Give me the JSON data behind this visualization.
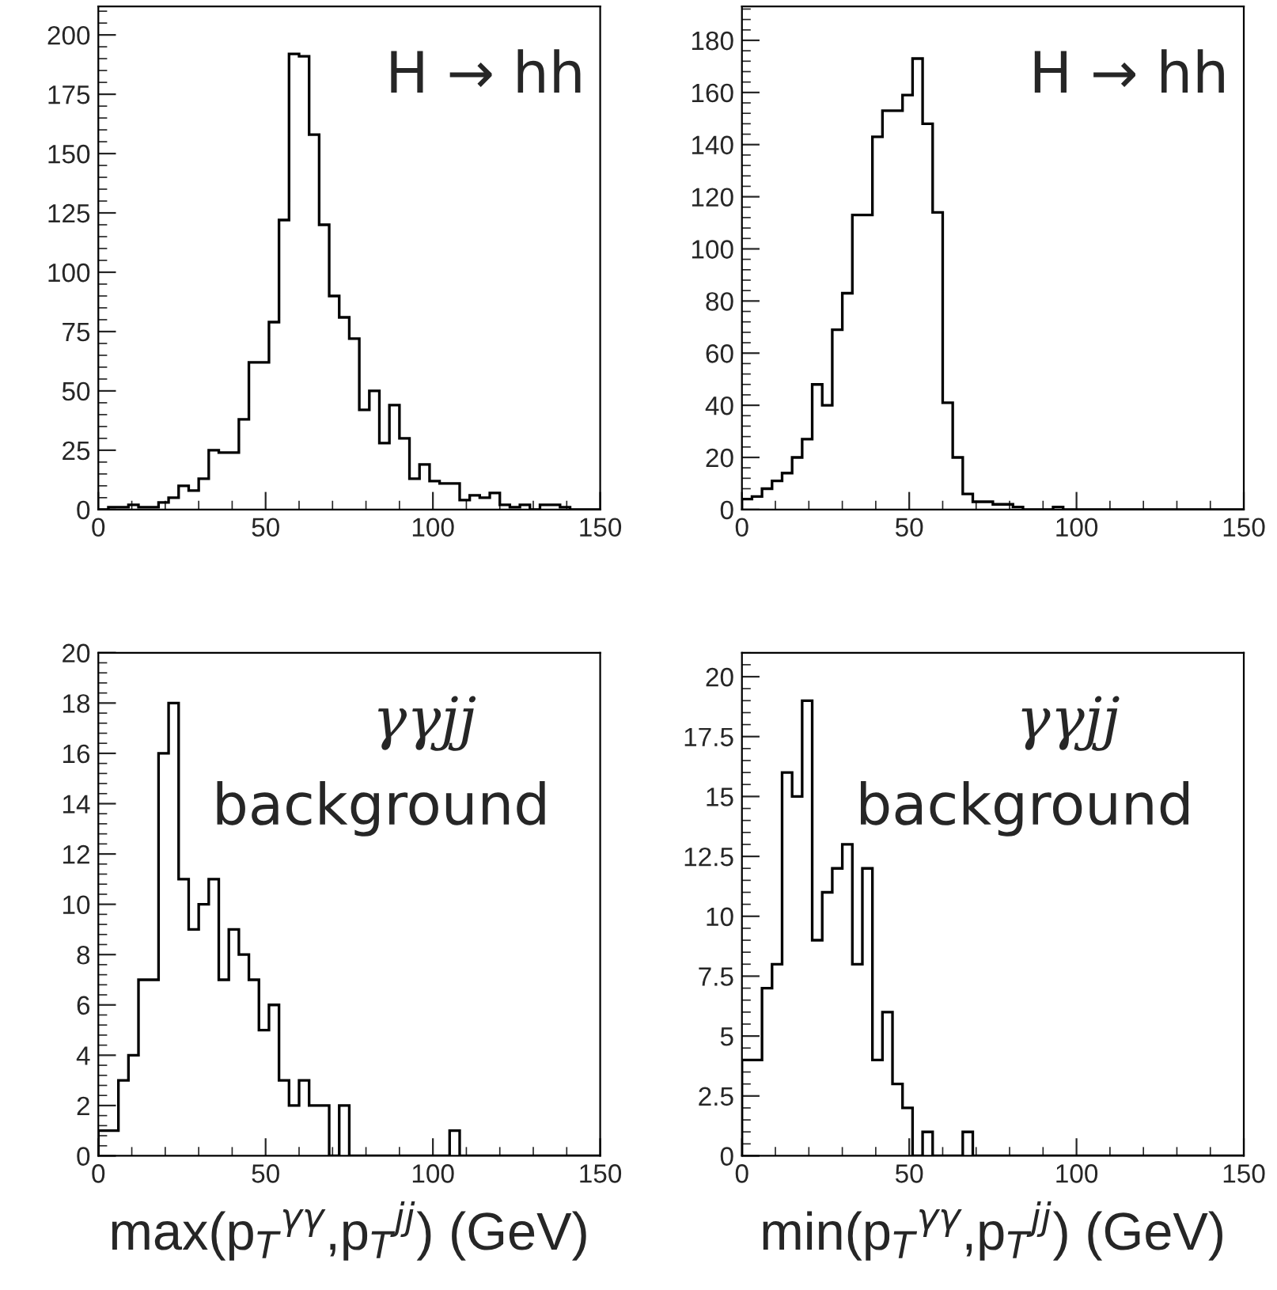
{
  "chart_data": [
    {
      "type": "histogram",
      "bins": [
        0,
        3,
        6,
        9,
        12,
        15,
        18,
        21,
        24,
        27,
        30,
        33,
        36,
        39,
        42,
        45,
        48,
        51,
        54,
        57,
        60,
        63,
        66,
        69,
        72,
        75,
        78,
        81,
        84,
        87,
        90,
        93,
        96,
        99,
        102,
        105,
        108,
        111,
        114,
        117,
        120,
        123,
        126,
        129,
        132,
        135,
        138,
        141,
        144,
        147,
        150
      ],
      "values": [
        0,
        1,
        1,
        2,
        1,
        1,
        3,
        5,
        10,
        8,
        13,
        25,
        24,
        24,
        38,
        62,
        62,
        79,
        122,
        192,
        191,
        158,
        120,
        90,
        81,
        72,
        42,
        50,
        28,
        44,
        30,
        13,
        19,
        12,
        11,
        11,
        4,
        6,
        5,
        7,
        2,
        1,
        2,
        0,
        2,
        2,
        1,
        0,
        0,
        0
      ],
      "color": "#000000",
      "xlim": [
        0,
        150
      ],
      "xticks": [
        0,
        50,
        100,
        150
      ],
      "ylim": [
        0,
        212
      ],
      "yticks": [
        0,
        25,
        50,
        75,
        100,
        125,
        150,
        175,
        200
      ],
      "grid": false,
      "annotations": [
        "H → hh"
      ]
    },
    {
      "type": "histogram",
      "bins": [
        0,
        3,
        6,
        9,
        12,
        15,
        18,
        21,
        24,
        27,
        30,
        33,
        36,
        39,
        42,
        45,
        48,
        51,
        54,
        57,
        60,
        63,
        66,
        69,
        72,
        75,
        78,
        81,
        84,
        87,
        90,
        93,
        96,
        99,
        102,
        105,
        108,
        111,
        114,
        117,
        120,
        123,
        126,
        129,
        132,
        135,
        138,
        141,
        144,
        147,
        150
      ],
      "values": [
        4,
        5,
        8,
        11,
        14,
        20,
        27,
        48,
        40,
        69,
        83,
        113,
        113,
        143,
        153,
        153,
        159,
        173,
        148,
        114,
        41,
        20,
        6,
        3,
        3,
        2,
        2,
        1,
        0,
        0,
        0,
        1,
        0,
        0,
        0,
        0,
        0,
        0,
        0,
        0,
        0,
        0,
        0,
        0,
        0,
        0,
        0,
        0,
        0,
        0
      ],
      "color": "#000000",
      "xlim": [
        0,
        150
      ],
      "xticks": [
        0,
        50,
        100,
        150
      ],
      "ylim": [
        0,
        193
      ],
      "yticks": [
        0,
        20,
        40,
        60,
        80,
        100,
        120,
        140,
        160,
        180
      ],
      "grid": false,
      "annotations": [
        "H → hh"
      ]
    },
    {
      "type": "histogram",
      "bins": [
        0,
        3,
        6,
        9,
        12,
        15,
        18,
        21,
        24,
        27,
        30,
        33,
        36,
        39,
        42,
        45,
        48,
        51,
        54,
        57,
        60,
        63,
        66,
        69,
        72,
        75,
        78,
        81,
        84,
        87,
        90,
        93,
        96,
        99,
        102,
        105,
        108,
        111,
        114,
        117,
        120,
        123,
        126,
        129,
        132,
        135,
        138,
        141,
        144,
        147,
        150
      ],
      "values": [
        1,
        1,
        3,
        4,
        7,
        7,
        16,
        18,
        11,
        9,
        10,
        11,
        7,
        9,
        8,
        7,
        5,
        6,
        3,
        2,
        3,
        2,
        2,
        0,
        2,
        0,
        0,
        0,
        0,
        0,
        0,
        0,
        0,
        0,
        0,
        1,
        0,
        0,
        0,
        0,
        0,
        0,
        0,
        0,
        0,
        0,
        0,
        0,
        0,
        0
      ],
      "color": "#000000",
      "xlim": [
        0,
        150
      ],
      "xticks": [
        0,
        50,
        100,
        150
      ],
      "ylim": [
        0,
        20
      ],
      "yticks": [
        0,
        2,
        4,
        6,
        8,
        10,
        12,
        14,
        16,
        18,
        20
      ],
      "grid": false,
      "xlabel": "max(p$_{T}$$^{γγ}$,p$_{T}$$^{jj}$) (GeV)",
      "annotations": [
        "γγjj",
        "background"
      ]
    },
    {
      "type": "histogram",
      "bins": [
        0,
        3,
        6,
        9,
        12,
        15,
        18,
        21,
        24,
        27,
        30,
        33,
        36,
        39,
        42,
        45,
        48,
        51,
        54,
        57,
        60,
        63,
        66,
        69,
        72,
        75,
        78,
        81,
        84,
        87,
        90,
        93,
        96,
        99,
        102,
        105,
        108,
        111,
        114,
        117,
        120,
        123,
        126,
        129,
        132,
        135,
        138,
        141,
        144,
        147,
        150
      ],
      "values": [
        4,
        4,
        7,
        8,
        16,
        15,
        19,
        9,
        11,
        12,
        13,
        8,
        12,
        4,
        6,
        3,
        2,
        0,
        1,
        0,
        0,
        0,
        1,
        0,
        0,
        0,
        0,
        0,
        0,
        0,
        0,
        0,
        0,
        0,
        0,
        0,
        0,
        0,
        0,
        0,
        0,
        0,
        0,
        0,
        0,
        0,
        0,
        0,
        0,
        0
      ],
      "color": "#000000",
      "xlim": [
        0,
        150
      ],
      "xticks": [
        0,
        50,
        100,
        150
      ],
      "ylim": [
        0,
        21
      ],
      "yticks": [
        0,
        {
          "value": 2.5,
          "label": "2.5"
        },
        5,
        {
          "value": 7.5,
          "label": "7.5"
        },
        10,
        {
          "value": 12.5,
          "label": "12.5"
        },
        15,
        {
          "value": 17.5,
          "label": "17.5"
        },
        20
      ],
      "grid": false,
      "xlabel": "min(p$_{T}$$^{γγ}$,p$_{T}$$^{jj}$) (GeV)",
      "annotations": [
        "γγjj",
        "background"
      ]
    }
  ]
}
